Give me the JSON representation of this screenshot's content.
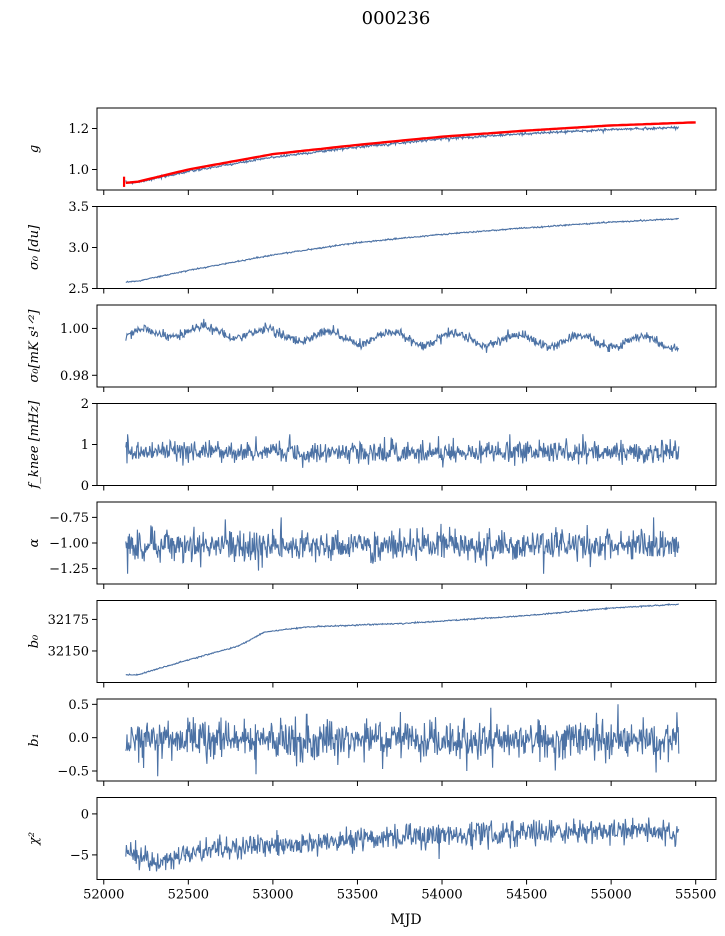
{
  "figure": {
    "title": "000236",
    "xlabel": "MJD"
  },
  "colors": {
    "series": "#4c72a5",
    "fit": "#ff0000",
    "axes": "#000000",
    "background": "#ffffff"
  },
  "chart_data": {
    "type": "line",
    "x": {
      "start": 52130,
      "end": 55400,
      "lim": [
        51960,
        55620
      ],
      "ticks": [
        52000,
        52500,
        53000,
        53500,
        54000,
        54500,
        55000,
        55500
      ],
      "tick_labels": [
        "52000",
        "52500",
        "53000",
        "53500",
        "54000",
        "54500",
        "55000",
        "55500"
      ]
    },
    "panels": [
      {
        "id": "g",
        "ylabel": "g",
        "ylim": [
          0.9,
          1.3
        ],
        "yticks": [
          1.0,
          1.2
        ],
        "ytick_labels": [
          "1.0",
          "1.2"
        ],
        "series": [
          {
            "kind": "curve",
            "anchors": [
              [
                52130,
                0.935
              ],
              [
                52200,
                0.938
              ],
              [
                52500,
                0.99
              ],
              [
                53000,
                1.06
              ],
              [
                53500,
                1.11
              ],
              [
                54000,
                1.15
              ],
              [
                54500,
                1.175
              ],
              [
                55000,
                1.195
              ],
              [
                55400,
                1.205
              ]
            ],
            "noise": 0.003,
            "color": "#4c72a5"
          },
          {
            "kind": "curve",
            "anchors": [
              [
                52130,
                0.935
              ],
              [
                52200,
                0.94
              ],
              [
                52500,
                1.0
              ],
              [
                53000,
                1.075
              ],
              [
                53500,
                1.12
              ],
              [
                54000,
                1.16
              ],
              [
                54500,
                1.19
              ],
              [
                55000,
                1.215
              ],
              [
                55500,
                1.23
              ]
            ],
            "noise": 0.0,
            "color": "#ff0000",
            "width": 2.4
          }
        ],
        "errorbar": {
          "x": 52120,
          "low": 0.915,
          "high": 0.965,
          "color": "#ff0000"
        }
      },
      {
        "id": "sigma0_du",
        "ylabel": "σ₀ [du]",
        "ylim": [
          2.5,
          3.5
        ],
        "yticks": [
          2.5,
          3.0,
          3.5
        ],
        "ytick_labels": [
          "2.5",
          "3.0",
          "3.5"
        ],
        "series": [
          {
            "kind": "curve",
            "anchors": [
              [
                52130,
                2.58
              ],
              [
                52200,
                2.59
              ],
              [
                52500,
                2.72
              ],
              [
                53000,
                2.91
              ],
              [
                53500,
                3.06
              ],
              [
                54000,
                3.16
              ],
              [
                54500,
                3.24
              ],
              [
                55000,
                3.31
              ],
              [
                55400,
                3.35
              ]
            ],
            "noise": 0.004,
            "color": "#4c72a5"
          }
        ]
      },
      {
        "id": "sigma0_mk",
        "ylabel": "σ₀[mK s¹ᐟ²]",
        "ylim": [
          0.975,
          1.01
        ],
        "yticks": [
          0.98,
          1.0
        ],
        "ytick_labels": [
          "0.98",
          "1.00"
        ],
        "series": [
          {
            "kind": "wave",
            "base": [
              [
                52130,
                0.996
              ],
              [
                52400,
                0.999
              ],
              [
                52800,
                0.998
              ],
              [
                53500,
                0.996
              ],
              [
                54500,
                0.995
              ],
              [
                55400,
                0.994
              ]
            ],
            "amp": 0.0025,
            "period": 370,
            "noise": 0.001,
            "color": "#4c72a5"
          }
        ]
      },
      {
        "id": "fknee",
        "ylabel": "f_knee [mHz]",
        "ylim": [
          0,
          2
        ],
        "yticks": [
          0,
          1,
          2
        ],
        "ytick_labels": [
          "0",
          "1",
          "2"
        ],
        "series": [
          {
            "kind": "noisy",
            "mean": 0.82,
            "sd": 0.13,
            "spikes": [
              [
                52140,
                1.25
              ],
              [
                52900,
                1.2
              ],
              [
                53100,
                1.25
              ],
              [
                54400,
                1.25
              ],
              [
                55300,
                1.1
              ]
            ],
            "color": "#4c72a5"
          }
        ]
      },
      {
        "id": "alpha",
        "ylabel": "α",
        "ylim": [
          -1.4,
          -0.6
        ],
        "yticks": [
          -1.25,
          -1.0,
          -0.75
        ],
        "ytick_labels": [
          "−1.25",
          "−1.00",
          "−0.75"
        ],
        "series": [
          {
            "kind": "noisy",
            "mean": -1.03,
            "sd": 0.075,
            "spikes": [
              [
                52140,
                -1.3
              ],
              [
                52720,
                -0.77
              ],
              [
                53050,
                -0.75
              ],
              [
                54600,
                -1.3
              ],
              [
                55250,
                -0.75
              ]
            ],
            "color": "#4c72a5"
          }
        ]
      },
      {
        "id": "b0",
        "ylabel": "b₀",
        "ylim": [
          32125,
          32190
        ],
        "yticks": [
          32150,
          32175
        ],
        "ytick_labels": [
          "32150",
          "32175"
        ],
        "series": [
          {
            "kind": "curve",
            "anchors": [
              [
                52130,
                32131
              ],
              [
                52200,
                32131
              ],
              [
                52500,
                32143
              ],
              [
                52800,
                32154
              ],
              [
                52950,
                32165
              ],
              [
                53200,
                32169
              ],
              [
                53800,
                32172
              ],
              [
                54500,
                32178
              ],
              [
                55000,
                32184
              ],
              [
                55400,
                32187
              ]
            ],
            "noise": 0.25,
            "color": "#4c72a5"
          }
        ]
      },
      {
        "id": "b1",
        "ylabel": "b₁",
        "ylim": [
          -0.65,
          0.58
        ],
        "yticks": [
          -0.5,
          0.0,
          0.5
        ],
        "ytick_labels": [
          "−0.5",
          "0.0",
          "0.5"
        ],
        "series": [
          {
            "kind": "noisy",
            "mean": -0.03,
            "sd": 0.14,
            "spikes": [
              [
                52320,
                -0.58
              ],
              [
                52900,
                -0.55
              ],
              [
                53200,
                0.35
              ],
              [
                55040,
                0.5
              ],
              [
                55390,
                0.38
              ]
            ],
            "color": "#4c72a5"
          }
        ]
      },
      {
        "id": "chi2",
        "ylabel": "χ²",
        "ylim": [
          -8,
          2
        ],
        "yticks": [
          -5,
          0
        ],
        "ytick_labels": [
          "−5",
          "0"
        ],
        "series": [
          {
            "kind": "trendnoise",
            "anchors": [
              [
                52130,
                -4.5
              ],
              [
                52300,
                -6.0
              ],
              [
                52600,
                -4.3
              ],
              [
                53000,
                -3.8
              ],
              [
                53500,
                -3.2
              ],
              [
                54000,
                -2.6
              ],
              [
                54500,
                -2.4
              ],
              [
                55000,
                -2.0
              ],
              [
                55400,
                -2.0
              ]
            ],
            "sd": 0.75,
            "color": "#4c72a5"
          }
        ]
      }
    ]
  }
}
